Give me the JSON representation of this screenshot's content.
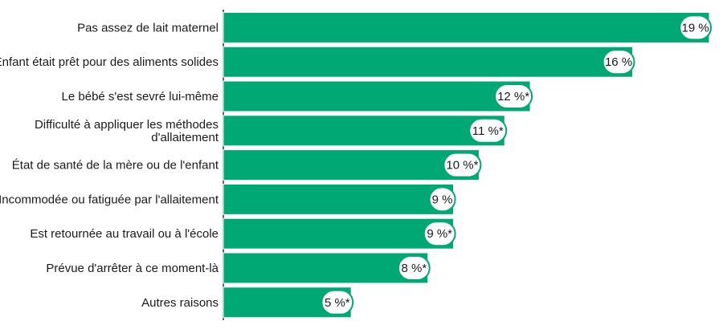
{
  "chart_data": {
    "type": "bar",
    "orientation": "horizontal",
    "categories": [
      [
        "Pas assez de lait maternel"
      ],
      [
        "Enfant était prêt pour des aliments solides"
      ],
      [
        "Le bébé s'est sevré lui-même"
      ],
      [
        "Difficulté à appliquer les méthodes",
        "d'allaitement"
      ],
      [
        "État de santé de la mère ou de l'enfant"
      ],
      [
        "Incommodée ou fatiguée par l'allaitement"
      ],
      [
        "Est retournée au travail ou à l'école"
      ],
      [
        "Prévue d'arrêter à ce moment-là"
      ],
      [
        "Autres raisons"
      ]
    ],
    "values": [
      19,
      16,
      12,
      11,
      10,
      9,
      9,
      8,
      5
    ],
    "value_labels": [
      "19 %",
      "16 %",
      "12 %*",
      "11 %*",
      "10 %*",
      "9 %",
      "9 %*",
      "8 %*",
      "5 %*"
    ],
    "xlim": [
      0,
      20
    ],
    "grid": false,
    "colors": {
      "bar": "#00a874",
      "bar_edge": "#ffffff",
      "badge_fill": "#ffffff",
      "badge_stroke": "#00a874",
      "axis": "#333333",
      "text": "#1a1a1a"
    }
  }
}
